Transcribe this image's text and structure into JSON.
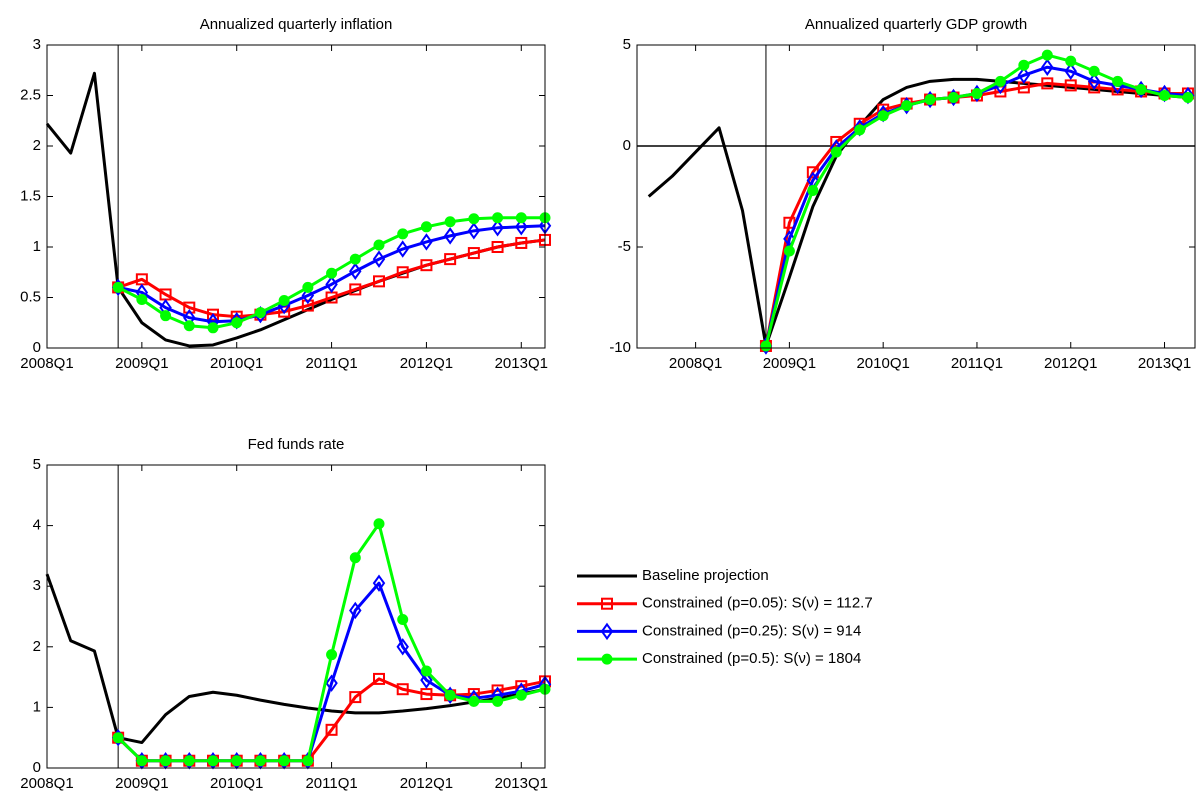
{
  "chart_data": [
    {
      "type": "line",
      "title": "Annualized quarterly inflation",
      "categories": [
        "2008Q1",
        null,
        null,
        null,
        "2009Q1",
        null,
        null,
        null,
        "2010Q1",
        null,
        null,
        null,
        "2011Q1",
        null,
        null,
        null,
        "2012Q1",
        null,
        null,
        null,
        "2013Q1",
        null
      ],
      "xlim": [
        0,
        21
      ],
      "ylim": [
        0,
        3
      ],
      "yticks": [
        0,
        0.5,
        1,
        1.5,
        2,
        2.5,
        3
      ],
      "series": [
        {
          "color": "#000000",
          "values": [
            2.22,
            1.93,
            2.72,
            0.6,
            0.25,
            0.08,
            0.02,
            0.03,
            0.1,
            0.18,
            0.28,
            0.38,
            0.48,
            0.57,
            0.66,
            0.74,
            0.82,
            0.88,
            0.94,
            1.0,
            1.04,
            1.07
          ]
        },
        {
          "color": "#ff0000",
          "marker": "square",
          "values": [
            null,
            null,
            null,
            0.6,
            0.68,
            0.53,
            0.4,
            0.33,
            0.31,
            0.33,
            0.36,
            0.42,
            0.5,
            0.58,
            0.66,
            0.75,
            0.82,
            0.88,
            0.94,
            1.0,
            1.04,
            1.07
          ]
        },
        {
          "color": "#0000ff",
          "marker": "diamond",
          "values": [
            null,
            null,
            null,
            0.6,
            0.55,
            0.4,
            0.3,
            0.26,
            0.27,
            0.33,
            0.42,
            0.52,
            0.63,
            0.76,
            0.88,
            0.98,
            1.05,
            1.11,
            1.16,
            1.19,
            1.2,
            1.21
          ]
        },
        {
          "color": "#00ff00",
          "marker": "circle",
          "values": [
            null,
            null,
            null,
            0.6,
            0.48,
            0.32,
            0.22,
            0.2,
            0.25,
            0.35,
            0.47,
            0.6,
            0.74,
            0.88,
            1.02,
            1.13,
            1.2,
            1.25,
            1.28,
            1.29,
            1.29,
            1.29
          ]
        }
      ]
    },
    {
      "type": "line",
      "title": "Annualized quarterly GDP growth",
      "categories": [
        null,
        null,
        "2008Q1",
        null,
        null,
        null,
        "2009Q1",
        null,
        null,
        null,
        "2010Q1",
        null,
        null,
        null,
        "2011Q1",
        null,
        null,
        null,
        "2012Q1",
        null,
        null,
        null,
        "2013Q1",
        null
      ],
      "xlim": [
        -0.5,
        23.3
      ],
      "ylim": [
        -10,
        5
      ],
      "yticks": [
        -10,
        -5,
        0,
        5
      ],
      "hline": 0,
      "series": [
        {
          "color": "#000000",
          "values": [
            -2.5,
            -1.5,
            -0.3,
            0.9,
            -3.2,
            -9.9,
            -6.5,
            -3.0,
            -0.5,
            1.0,
            2.3,
            2.9,
            3.2,
            3.3,
            3.3,
            3.2,
            3.1,
            3.0,
            2.9,
            2.8,
            2.7,
            2.6,
            2.5,
            2.4
          ]
        },
        {
          "color": "#ff0000",
          "marker": "square",
          "values": [
            null,
            null,
            null,
            null,
            null,
            -9.9,
            -3.8,
            -1.3,
            0.2,
            1.1,
            1.8,
            2.1,
            2.3,
            2.4,
            2.5,
            2.7,
            2.9,
            3.1,
            3.0,
            2.9,
            2.8,
            2.7,
            2.6,
            2.6
          ]
        },
        {
          "color": "#0000ff",
          "marker": "diamond",
          "values": [
            null,
            null,
            null,
            null,
            null,
            -9.9,
            -4.6,
            -1.7,
            -0.1,
            0.9,
            1.6,
            2.0,
            2.3,
            2.4,
            2.6,
            3.0,
            3.5,
            3.9,
            3.7,
            3.2,
            3.0,
            2.8,
            2.6,
            2.5
          ]
        },
        {
          "color": "#00ff00",
          "marker": "circle",
          "values": [
            null,
            null,
            null,
            null,
            null,
            -9.9,
            -5.2,
            -2.2,
            -0.3,
            0.8,
            1.5,
            2.0,
            2.3,
            2.4,
            2.6,
            3.2,
            4.0,
            4.5,
            4.2,
            3.7,
            3.2,
            2.8,
            2.5,
            2.4
          ]
        }
      ]
    },
    {
      "type": "line",
      "title": "Fed funds rate",
      "categories": [
        "2008Q1",
        null,
        null,
        null,
        "2009Q1",
        null,
        null,
        null,
        "2010Q1",
        null,
        null,
        null,
        "2011Q1",
        null,
        null,
        null,
        "2012Q1",
        null,
        null,
        null,
        "2013Q1",
        null
      ],
      "xlim": [
        0,
        21
      ],
      "ylim": [
        0,
        5
      ],
      "yticks": [
        0,
        1,
        2,
        3,
        4,
        5
      ],
      "series": [
        {
          "name": "Baseline projection",
          "color": "#000000",
          "values": [
            3.2,
            2.1,
            1.93,
            0.5,
            0.42,
            0.88,
            1.18,
            1.25,
            1.2,
            1.12,
            1.05,
            0.99,
            0.94,
            0.91,
            0.91,
            0.94,
            0.98,
            1.03,
            1.09,
            1.15,
            1.22,
            1.3
          ]
        },
        {
          "name": "Constrained (p=0.05): S(ν) = 112.7",
          "color": "#ff0000",
          "marker": "square",
          "values": [
            null,
            null,
            null,
            0.5,
            0.12,
            0.12,
            0.12,
            0.12,
            0.12,
            0.12,
            0.12,
            0.12,
            0.63,
            1.17,
            1.47,
            1.3,
            1.22,
            1.2,
            1.22,
            1.28,
            1.35,
            1.43
          ]
        },
        {
          "name": "Constrained (p=0.25): S(ν) = 914",
          "color": "#0000ff",
          "marker": "diamond",
          "values": [
            null,
            null,
            null,
            0.5,
            0.12,
            0.12,
            0.12,
            0.12,
            0.12,
            0.12,
            0.12,
            0.12,
            1.4,
            2.6,
            3.05,
            2.0,
            1.45,
            1.2,
            1.15,
            1.2,
            1.27,
            1.38
          ]
        },
        {
          "name": "Constrained (p=0.5): S(ν) = 1804",
          "color": "#00ff00",
          "marker": "circle",
          "values": [
            null,
            null,
            null,
            0.5,
            0.12,
            0.12,
            0.12,
            0.12,
            0.12,
            0.12,
            0.12,
            0.12,
            1.87,
            3.47,
            4.03,
            2.45,
            1.6,
            1.2,
            1.1,
            1.1,
            1.2,
            1.3
          ]
        }
      ]
    }
  ]
}
